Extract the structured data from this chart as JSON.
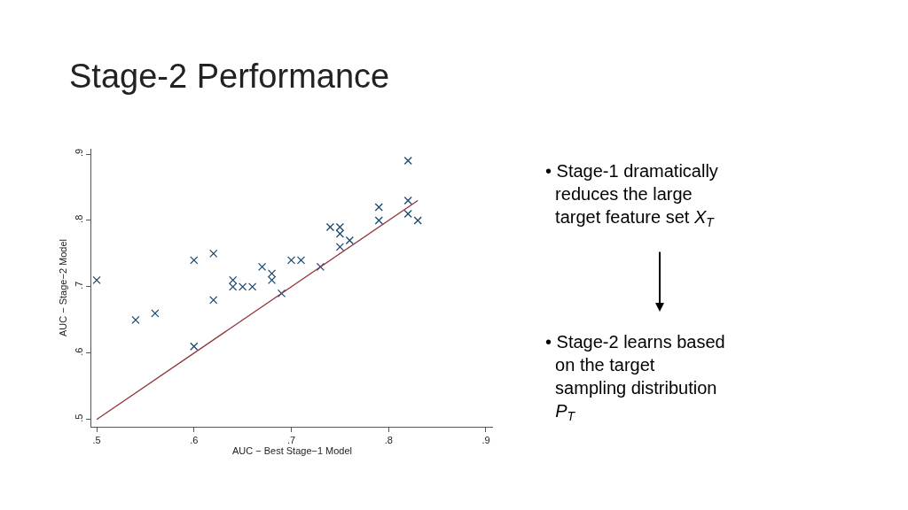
{
  "chart_data": {
    "type": "scatter",
    "title": "Stage-2 Performance",
    "xlabel": "AUC − Best Stage−1 Model",
    "ylabel": "AUC − Stage−2 Model",
    "series": [
      {
        "color": "#1a476f",
        "marker": "cross",
        "x": [
          0.5,
          0.54,
          0.56,
          0.6,
          0.6,
          0.62,
          0.62,
          0.64,
          0.64,
          0.65,
          0.66,
          0.67,
          0.68,
          0.68,
          0.69,
          0.7,
          0.71,
          0.73,
          0.74,
          0.75,
          0.75,
          0.75,
          0.76,
          0.79,
          0.79,
          0.82,
          0.82,
          0.82,
          0.83
        ],
        "values": [
          0.71,
          0.65,
          0.66,
          0.74,
          0.61,
          0.75,
          0.68,
          0.71,
          0.7,
          0.7,
          0.7,
          0.73,
          0.72,
          0.71,
          0.69,
          0.74,
          0.74,
          0.73,
          0.79,
          0.79,
          0.78,
          0.76,
          0.77,
          0.82,
          0.8,
          0.89,
          0.83,
          0.81,
          0.8
        ]
      },
      {
        "type": "line",
        "color": "#90353b",
        "marker": "none",
        "line_style": "solid",
        "x": [
          0.5,
          0.83
        ],
        "values": [
          0.5,
          0.83
        ]
      }
    ],
    "xlim": [
      0.4945,
      0.9073
    ],
    "ylim": [
      0.489,
      0.908
    ],
    "xticks": [
      {
        "value": 0.5,
        "label": ".5"
      },
      {
        "value": 0.6,
        "label": ".6"
      },
      {
        "value": 0.7,
        "label": ".7"
      },
      {
        "value": 0.8,
        "label": ".8"
      },
      {
        "value": 0.9,
        "label": ".9"
      }
    ],
    "yticks": [
      {
        "value": 0.5,
        "label": ".5"
      },
      {
        "value": 0.6,
        "label": ".6"
      },
      {
        "value": 0.7,
        "label": ".7"
      },
      {
        "value": 0.8,
        "label": ".8"
      },
      {
        "value": 0.9,
        "label": ".9"
      }
    ],
    "annotations": [
      "• Stage-1 dramatically reduces the large target feature set X$_{T}$",
      "• Stage-2 learns based on the target sampling distribution P$_{T}$"
    ]
  }
}
